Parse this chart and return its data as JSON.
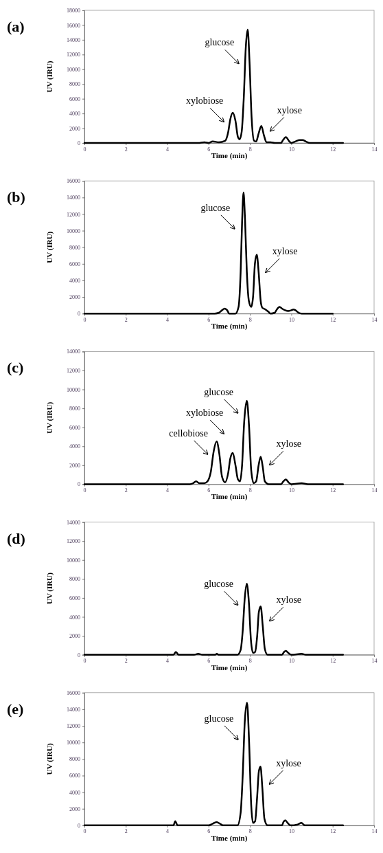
{
  "chart_data": [
    {
      "type": "line",
      "title": "(a)",
      "xlabel": "Time (min)",
      "ylabel": "UV (IRU)",
      "xlim": [
        0,
        14
      ],
      "xticks": [
        0,
        2,
        4,
        6,
        8,
        10,
        12,
        14
      ],
      "ylim": [
        0,
        18000
      ],
      "yticks": [
        0,
        2000,
        4000,
        6000,
        8000,
        10000,
        12000,
        14000,
        16000,
        18000
      ],
      "series": [
        {
          "color": "#000000",
          "x": [
            0,
            5.5,
            5.8,
            6.0,
            6.2,
            6.5,
            6.8,
            6.95,
            7.05,
            7.17,
            7.3,
            7.42,
            7.5,
            7.6,
            7.7,
            7.8,
            7.89,
            7.98,
            8.08,
            8.2,
            8.3,
            8.42,
            8.55,
            8.68,
            8.8,
            9.0,
            9.2,
            9.5,
            9.6,
            9.74,
            9.88,
            10.0,
            10.2,
            10.4,
            10.55,
            10.7,
            10.9,
            12.5
          ],
          "values": [
            0,
            0,
            100,
            0,
            200,
            100,
            300,
            1500,
            3200,
            4100,
            3000,
            800,
            500,
            1500,
            6000,
            13000,
            15400,
            11000,
            3500,
            300,
            200,
            1300,
            2300,
            1000,
            100,
            100,
            0,
            0,
            400,
            800,
            300,
            0,
            200,
            400,
            400,
            200,
            0,
            0
          ]
        }
      ],
      "annotations": [
        "xylobiose",
        "glucose",
        "xylose"
      ]
    },
    {
      "type": "line",
      "title": "(b)",
      "xlabel": "Time (min)",
      "ylabel": "UV (IRU)",
      "xlim": [
        0,
        14
      ],
      "xticks": [
        0,
        2,
        4,
        6,
        8,
        10,
        12,
        14
      ],
      "ylim": [
        0,
        16000
      ],
      "yticks": [
        0,
        2000,
        4000,
        6000,
        8000,
        10000,
        12000,
        14000,
        16000
      ],
      "series": [
        {
          "color": "#000000",
          "x": [
            0,
            6.0,
            6.3,
            6.5,
            6.65,
            6.78,
            6.9,
            7.0,
            7.3,
            7.45,
            7.55,
            7.62,
            7.69,
            7.76,
            7.85,
            7.95,
            8.06,
            8.15,
            8.24,
            8.33,
            8.42,
            8.52,
            8.6,
            8.75,
            8.9,
            9.0,
            9.2,
            9.3,
            9.43,
            9.55,
            9.7,
            9.85,
            10.0,
            10.1,
            10.2,
            10.35,
            10.5,
            12.0
          ],
          "values": [
            0,
            0,
            0,
            100,
            400,
            600,
            400,
            0,
            0,
            800,
            5000,
            11000,
            14600,
            11500,
            5000,
            1500,
            800,
            2000,
            6000,
            7100,
            5000,
            1500,
            700,
            500,
            200,
            0,
            100,
            500,
            800,
            600,
            400,
            300,
            400,
            500,
            400,
            100,
            0,
            0
          ]
        }
      ],
      "annotations": [
        "glucose",
        "xylose"
      ]
    },
    {
      "type": "line",
      "title": "(c)",
      "xlabel": "Time (min)",
      "ylabel": "UV (IRU)",
      "xlim": [
        0,
        14
      ],
      "xticks": [
        0,
        2,
        4,
        6,
        8,
        10,
        12,
        14
      ],
      "ylim": [
        0,
        14000
      ],
      "yticks": [
        0,
        2000,
        4000,
        6000,
        8000,
        10000,
        12000,
        14000
      ],
      "series": [
        {
          "color": "#000000",
          "x": [
            0,
            5.1,
            5.25,
            5.4,
            5.55,
            5.8,
            5.95,
            6.1,
            6.25,
            6.39,
            6.52,
            6.65,
            6.8,
            6.95,
            7.05,
            7.17,
            7.3,
            7.42,
            7.52,
            7.62,
            7.72,
            7.85,
            7.96,
            8.06,
            8.18,
            8.3,
            8.42,
            8.52,
            8.62,
            8.72,
            8.9,
            9.5,
            9.62,
            9.74,
            9.86,
            10.0,
            10.5,
            10.8,
            12.5
          ],
          "values": [
            0,
            0,
            100,
            300,
            100,
            100,
            300,
            1200,
            3500,
            4500,
            3200,
            800,
            200,
            1200,
            2700,
            3300,
            2000,
            500,
            300,
            2000,
            6500,
            8800,
            6000,
            1500,
            100,
            300,
            2000,
            2900,
            1800,
            300,
            0,
            0,
            300,
            500,
            200,
            0,
            100,
            0,
            0
          ]
        }
      ],
      "annotations": [
        "cellobiose",
        "xylobiose",
        "glucose",
        "xylose"
      ]
    },
    {
      "type": "line",
      "title": "(d)",
      "xlabel": "Time (min)",
      "ylabel": "UV (IRU)",
      "xlim": [
        0,
        14
      ],
      "xticks": [
        0,
        2,
        4,
        6,
        8,
        10,
        12,
        14
      ],
      "ylim": [
        0,
        14000
      ],
      "yticks": [
        0,
        2000,
        4000,
        6000,
        8000,
        10000,
        12000,
        14000
      ],
      "series": [
        {
          "color": "#000000",
          "x": [
            0,
            4.3,
            4.42,
            4.55,
            5.3,
            5.5,
            5.7,
            6.3,
            6.4,
            6.5,
            7.4,
            7.55,
            7.65,
            7.75,
            7.85,
            7.95,
            8.05,
            8.15,
            8.25,
            8.35,
            8.43,
            8.52,
            8.62,
            8.72,
            8.85,
            9.55,
            9.65,
            9.74,
            9.85,
            10.0,
            10.5,
            10.7,
            12.5
          ],
          "values": [
            0,
            0,
            300,
            0,
            0,
            100,
            0,
            0,
            100,
            0,
            0,
            500,
            2500,
            6000,
            7500,
            5500,
            1500,
            200,
            300,
            2000,
            4500,
            5100,
            3000,
            600,
            0,
            0,
            300,
            400,
            200,
            0,
            100,
            0,
            0
          ]
        }
      ],
      "annotations": [
        "glucose",
        "xylose"
      ]
    },
    {
      "type": "line",
      "title": "(e)",
      "xlabel": "Time (min)",
      "ylabel": "UV (IRU)",
      "xlim": [
        0,
        14
      ],
      "xticks": [
        0,
        2,
        4,
        6,
        8,
        10,
        12,
        14
      ],
      "ylim": [
        0,
        16000
      ],
      "yticks": [
        0,
        2000,
        4000,
        6000,
        8000,
        10000,
        12000,
        14000,
        16000
      ],
      "series": [
        {
          "color": "#000000",
          "x": [
            0,
            4.3,
            4.39,
            4.5,
            6.0,
            6.2,
            6.39,
            6.55,
            6.7,
            7.4,
            7.55,
            7.65,
            7.75,
            7.86,
            7.96,
            8.06,
            8.15,
            8.25,
            8.35,
            8.43,
            8.51,
            8.6,
            8.7,
            8.85,
            9.55,
            9.62,
            9.71,
            9.82,
            9.95,
            10.3,
            10.49,
            10.65,
            12.5
          ],
          "values": [
            0,
            0,
            500,
            0,
            0,
            200,
            400,
            200,
            0,
            0,
            1500,
            6000,
            12500,
            14800,
            10000,
            2500,
            300,
            500,
            3500,
            6500,
            7100,
            4500,
            800,
            0,
            0,
            400,
            600,
            300,
            0,
            100,
            300,
            0,
            0
          ]
        }
      ],
      "annotations": [
        "glucose",
        "xylose"
      ]
    }
  ]
}
